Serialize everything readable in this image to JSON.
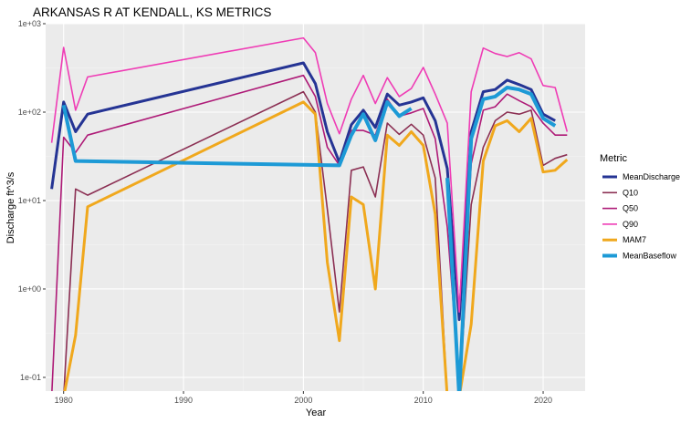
{
  "chart_data": {
    "type": "line",
    "title": "ARKANSAS R AT KENDALL, KS  METRICS",
    "xlabel": "Year",
    "ylabel": "Discharge ft^3/s",
    "y_scale": "log10",
    "xlim": [
      1978.5,
      2023.5
    ],
    "ylim": [
      0.07,
      1000
    ],
    "x_ticks": [
      1980,
      1990,
      2000,
      2010,
      2020
    ],
    "y_ticks": [
      {
        "value": 0.1,
        "label": "1e-01"
      },
      {
        "value": 1,
        "label": "1e+00"
      },
      {
        "value": 10,
        "label": "1e+01"
      },
      {
        "value": 100,
        "label": "1e+02"
      },
      {
        "value": 1000,
        "label": "1e+03"
      }
    ],
    "grid": true,
    "legend": {
      "title": "Metric",
      "position": "right"
    },
    "series": [
      {
        "name": "MeanDischarge",
        "color": "#253494",
        "width": 3,
        "points": [
          [
            1979,
            13.5
          ],
          [
            1980,
            130
          ],
          [
            1981,
            60
          ],
          [
            1982,
            95
          ],
          [
            2000,
            360
          ],
          [
            2001,
            210
          ],
          [
            2002,
            60
          ],
          [
            2003,
            27
          ],
          [
            2004,
            72
          ],
          [
            2005,
            105
          ],
          [
            2006,
            67
          ],
          [
            2007,
            160
          ],
          [
            2008,
            120
          ],
          [
            2009,
            130
          ],
          [
            2010,
            145
          ],
          [
            2011,
            80
          ],
          [
            2012,
            23
          ],
          [
            2013,
            0.45
          ],
          [
            2014,
            60
          ],
          [
            2015,
            170
          ],
          [
            2016,
            180
          ],
          [
            2017,
            230
          ],
          [
            2018,
            205
          ],
          [
            2019,
            180
          ],
          [
            2020,
            95
          ],
          [
            2021,
            80
          ]
        ]
      },
      {
        "name": "Q10",
        "color": "#8b2f53",
        "width": 1.6,
        "points": [
          [
            1979,
            0.06
          ],
          [
            1980,
            0.06
          ],
          [
            1981,
            13.5
          ],
          [
            1982,
            11.5
          ],
          [
            2000,
            170
          ],
          [
            2001,
            100
          ],
          [
            2002,
            8
          ],
          [
            2003,
            0.55
          ],
          [
            2004,
            22
          ],
          [
            2005,
            24
          ],
          [
            2006,
            11
          ],
          [
            2007,
            75
          ],
          [
            2008,
            56
          ],
          [
            2009,
            73
          ],
          [
            2010,
            55
          ],
          [
            2011,
            18
          ],
          [
            2012,
            0.06
          ],
          [
            2013,
            0.06
          ],
          [
            2014,
            9
          ],
          [
            2015,
            40
          ],
          [
            2016,
            80
          ],
          [
            2017,
            100
          ],
          [
            2018,
            95
          ],
          [
            2019,
            105
          ],
          [
            2020,
            25
          ],
          [
            2021,
            30
          ],
          [
            2022,
            33
          ]
        ]
      },
      {
        "name": "Q50",
        "color": "#ae1a77",
        "width": 1.6,
        "points": [
          [
            1979,
            0.06
          ],
          [
            1980,
            52
          ],
          [
            1981,
            35
          ],
          [
            1982,
            55
          ],
          [
            2000,
            260
          ],
          [
            2001,
            150
          ],
          [
            2002,
            40
          ],
          [
            2003,
            25
          ],
          [
            2004,
            62
          ],
          [
            2005,
            62
          ],
          [
            2006,
            55
          ],
          [
            2007,
            140
          ],
          [
            2008,
            90
          ],
          [
            2009,
            98
          ],
          [
            2010,
            110
          ],
          [
            2011,
            50
          ],
          [
            2012,
            5
          ],
          [
            2013,
            0.09
          ],
          [
            2014,
            26
          ],
          [
            2015,
            105
          ],
          [
            2016,
            115
          ],
          [
            2017,
            160
          ],
          [
            2018,
            135
          ],
          [
            2019,
            115
          ],
          [
            2020,
            75
          ],
          [
            2021,
            55
          ],
          [
            2022,
            55
          ]
        ]
      },
      {
        "name": "Q90",
        "color": "#ef3cb5",
        "width": 1.6,
        "points": [
          [
            1979,
            45
          ],
          [
            1980,
            540
          ],
          [
            1981,
            105
          ],
          [
            1982,
            250
          ],
          [
            2000,
            690
          ],
          [
            2001,
            470
          ],
          [
            2002,
            125
          ],
          [
            2003,
            57
          ],
          [
            2004,
            140
          ],
          [
            2005,
            260
          ],
          [
            2006,
            125
          ],
          [
            2007,
            245
          ],
          [
            2008,
            150
          ],
          [
            2009,
            185
          ],
          [
            2010,
            320
          ],
          [
            2011,
            160
          ],
          [
            2012,
            75
          ],
          [
            2013,
            0.55
          ],
          [
            2014,
            170
          ],
          [
            2015,
            530
          ],
          [
            2016,
            460
          ],
          [
            2017,
            425
          ],
          [
            2018,
            470
          ],
          [
            2019,
            400
          ],
          [
            2020,
            200
          ],
          [
            2021,
            190
          ],
          [
            2022,
            60
          ]
        ]
      },
      {
        "name": "MAM7",
        "color": "#f0a81d",
        "width": 3,
        "points": [
          [
            1979,
            0.06
          ],
          [
            1980,
            0.06
          ],
          [
            1981,
            0.3
          ],
          [
            1982,
            8.5
          ],
          [
            2000,
            130
          ],
          [
            2001,
            95
          ],
          [
            2002,
            2
          ],
          [
            2003,
            0.26
          ],
          [
            2004,
            11
          ],
          [
            2005,
            9
          ],
          [
            2006,
            1
          ],
          [
            2007,
            55
          ],
          [
            2008,
            42
          ],
          [
            2009,
            60
          ],
          [
            2010,
            42
          ],
          [
            2011,
            7
          ],
          [
            2012,
            0.06
          ],
          [
            2013,
            0.06
          ],
          [
            2014,
            0.4
          ],
          [
            2015,
            28
          ],
          [
            2016,
            70
          ],
          [
            2017,
            80
          ],
          [
            2018,
            60
          ],
          [
            2019,
            85
          ],
          [
            2020,
            21
          ],
          [
            2021,
            22
          ],
          [
            2022,
            29
          ]
        ]
      },
      {
        "name": "MeanBaseflow",
        "color": "#1d9ad6",
        "width": 4,
        "points": [
          [
            1980,
            120
          ],
          [
            1981,
            28
          ],
          [
            2003,
            25
          ],
          [
            2004,
            55
          ],
          [
            2005,
            95
          ],
          [
            2006,
            48
          ],
          [
            2007,
            130
          ],
          [
            2008,
            90
          ],
          [
            2009,
            110
          ],
          [
            2010,
            null
          ],
          [
            2012,
            18
          ],
          [
            2013,
            0.06
          ],
          [
            2014,
            50
          ],
          [
            2015,
            140
          ],
          [
            2016,
            150
          ],
          [
            2017,
            190
          ],
          [
            2018,
            180
          ],
          [
            2019,
            160
          ],
          [
            2020,
            85
          ],
          [
            2021,
            70
          ]
        ]
      }
    ]
  }
}
